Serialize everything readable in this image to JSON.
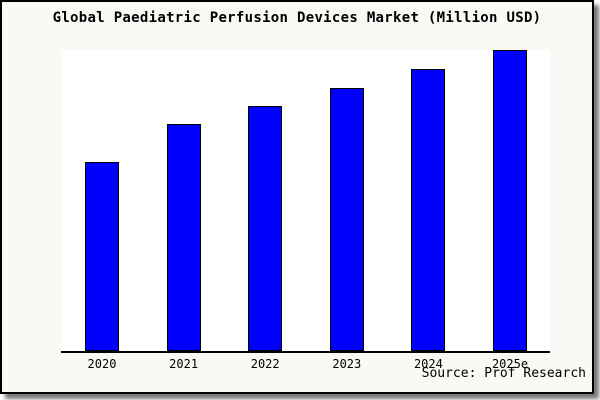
{
  "colors": {
    "bar_fill": "#0000ff",
    "bar_border": "#000000",
    "frame_background": "#faf9f5",
    "frame_border": "#000000",
    "plot_background": "#ffffff",
    "axis": "#000000",
    "shadow": "#606060",
    "text": "#000000"
  },
  "chart_data": {
    "type": "bar",
    "title": "Global Paediatric Perfusion Devices Market (Million USD)",
    "categories": [
      "2020",
      "2021",
      "2022",
      "2023",
      "2024",
      "2025e"
    ],
    "values": [
      62.8,
      75.4,
      81.4,
      87.4,
      93.7,
      100
    ],
    "value_basis": "percent_of_tallest_bar",
    "xlabel": "",
    "ylabel": "",
    "ylim": [
      0,
      100
    ],
    "y_axis_visible": false,
    "gridlines": false,
    "legend": false,
    "source": "Source: Prof Research"
  }
}
